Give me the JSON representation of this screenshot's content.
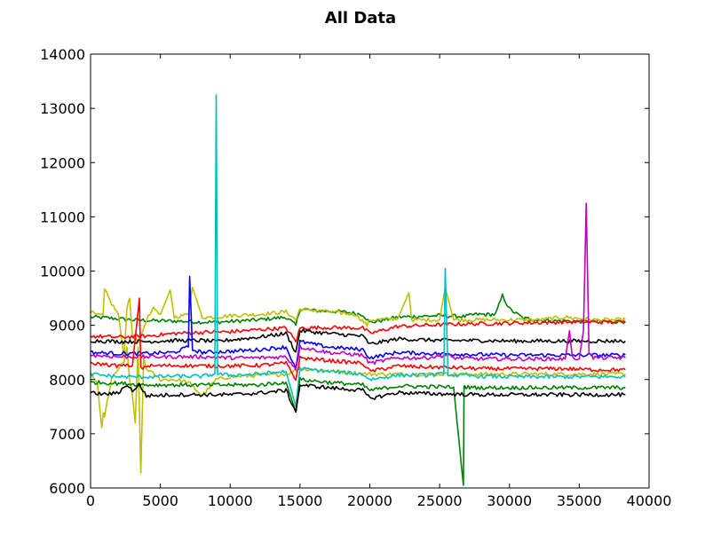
{
  "chart_data": {
    "type": "line",
    "title": "All Data",
    "xlabel": "",
    "ylabel": "",
    "xlim": [
      0,
      40000
    ],
    "ylim": [
      6000,
      14000
    ],
    "xticks": [
      0,
      5000,
      10000,
      15000,
      20000,
      25000,
      30000,
      35000,
      40000
    ],
    "yticks": [
      6000,
      7000,
      8000,
      9000,
      10000,
      11000,
      12000,
      13000,
      14000
    ],
    "xtick_labels": [
      "0",
      "5000",
      "10000",
      "15000",
      "20000",
      "25000",
      "30000",
      "35000",
      "40000"
    ],
    "ytick_labels": [
      "6000",
      "7000",
      "8000",
      "9000",
      "10000",
      "11000",
      "12000",
      "13000",
      "14000"
    ],
    "grid": false,
    "legend": "none",
    "series": [
      {
        "color": "#008000",
        "x": [
          0,
          1000,
          2000,
          3000,
          4000,
          5000,
          6000,
          7000,
          8000,
          9000,
          10000,
          12000,
          14000,
          14700,
          15000,
          16000,
          18000,
          19500,
          20000,
          22000,
          24000,
          25000,
          26000,
          26800,
          27500,
          29000,
          29500,
          30000,
          31000,
          32000,
          33000,
          34000,
          35000,
          36000,
          37000,
          38300
        ],
        "y": [
          9150,
          9140,
          9120,
          9100,
          9090,
          9080,
          9080,
          9070,
          9060,
          9060,
          9070,
          9100,
          9150,
          9000,
          9300,
          9270,
          9250,
          9200,
          9050,
          9150,
          9170,
          9180,
          9170,
          9160,
          9200,
          9200,
          9550,
          9300,
          9130,
          9100,
          9080,
          9080,
          9070,
          9070,
          9070,
          9070
        ]
      },
      {
        "color": "#bfbf00",
        "x": [
          0,
          500,
          900,
          1000,
          1500,
          2000,
          2400,
          2600,
          2800,
          3000,
          3500,
          4000,
          4500,
          5000,
          5700,
          6000,
          7000,
          7300,
          8000,
          9000,
          10000,
          12000,
          14000,
          14700,
          15000,
          17000,
          19000,
          19800,
          20000,
          22000,
          22800,
          23000,
          25000,
          25400,
          26000,
          28000,
          30000,
          32000,
          34000,
          36000,
          38300
        ],
        "y": [
          9250,
          9180,
          9200,
          9650,
          9400,
          9200,
          8400,
          9300,
          9500,
          8800,
          8700,
          9100,
          9300,
          9200,
          9650,
          9150,
          9200,
          9700,
          9150,
          9150,
          9180,
          9200,
          9250,
          9100,
          9300,
          9250,
          9200,
          9000,
          9100,
          9120,
          9600,
          9100,
          9100,
          9700,
          9100,
          9100,
          9100,
          9100,
          9150,
          9100,
          9100
        ]
      },
      {
        "color": "#bfbf00",
        "x": [
          0,
          500,
          800,
          900,
          1000,
          1200,
          1500,
          2000,
          2400,
          2600,
          2800,
          3000,
          3200,
          3400,
          3600,
          3800,
          4000,
          4500,
          5000,
          6000,
          7000,
          8000,
          9000,
          10000,
          14000,
          15000,
          20000,
          25000,
          30000,
          35000,
          38300
        ],
        "y": [
          8100,
          7900,
          7100,
          7400,
          7300,
          7600,
          8000,
          8200,
          8300,
          8600,
          8000,
          7700,
          7200,
          8600,
          6280,
          8400,
          8200,
          8100,
          8000,
          8000,
          7950,
          7700,
          8000,
          8050,
          8100,
          8200,
          8100,
          8100,
          8100,
          8100,
          8100
        ]
      },
      {
        "color": "#ff0000",
        "x": [
          0,
          2000,
          4000,
          6000,
          8000,
          10000,
          12000,
          14000,
          14700,
          15000,
          17000,
          19500,
          20000,
          22000,
          24000,
          26000,
          28000,
          30000,
          32000,
          34000,
          36000,
          38300
        ],
        "y": [
          8800,
          8780,
          8800,
          8850,
          8870,
          8880,
          8920,
          8950,
          8700,
          8950,
          8960,
          8950,
          8850,
          8980,
          9000,
          9020,
          9030,
          9040,
          9050,
          9060,
          9060,
          9060
        ]
      },
      {
        "color": "#000000",
        "x": [
          0,
          2000,
          4000,
          6000,
          8000,
          9000,
          10000,
          12000,
          14000,
          14700,
          15000,
          17000,
          19500,
          20000,
          22000,
          24000,
          26000,
          28000,
          30000,
          32000,
          34000,
          36000,
          38300
        ],
        "y": [
          8720,
          8700,
          8700,
          8720,
          8720,
          8700,
          8730,
          8780,
          8850,
          8500,
          8900,
          8850,
          8800,
          8650,
          8750,
          8730,
          8720,
          8720,
          8710,
          8710,
          8710,
          8710,
          8710
        ]
      },
      {
        "color": "#0000ff",
        "x": [
          0,
          2000,
          4000,
          6000,
          7000,
          7100,
          7300,
          8000,
          10000,
          12000,
          14000,
          14700,
          15000,
          17000,
          19500,
          20000,
          22000,
          24000,
          26000,
          28000,
          30000,
          32000,
          34000,
          36000,
          38300
        ],
        "y": [
          8500,
          8480,
          8480,
          8500,
          8600,
          9900,
          8550,
          8500,
          8520,
          8550,
          8600,
          8200,
          8700,
          8600,
          8550,
          8400,
          8500,
          8480,
          8470,
          8460,
          8450,
          8450,
          8450,
          8450,
          8450
        ]
      },
      {
        "color": "#bf00bf",
        "x": [
          0,
          2000,
          4000,
          6000,
          8000,
          10000,
          12000,
          14000,
          14700,
          15000,
          17000,
          19500,
          20000,
          22000,
          24000,
          25500,
          26000,
          28000,
          30000,
          32000,
          34000,
          34300,
          34500,
          35000,
          35300,
          35500,
          35700,
          36000,
          38300
        ],
        "y": [
          8450,
          8420,
          8420,
          8420,
          8420,
          8400,
          8400,
          8420,
          8200,
          8600,
          8500,
          8450,
          8300,
          8400,
          8400,
          8450,
          8400,
          8380,
          8380,
          8380,
          8380,
          8900,
          8400,
          8380,
          8900,
          11250,
          8500,
          8400,
          8400
        ]
      },
      {
        "color": "#ff0000",
        "x": [
          0,
          1000,
          2000,
          3000,
          3500,
          3600,
          4000,
          6000,
          8000,
          10000,
          12000,
          14000,
          14700,
          15000,
          17000,
          19500,
          20000,
          22000,
          24000,
          26000,
          28000,
          30000,
          32000,
          34000,
          36000,
          38300
        ],
        "y": [
          8300,
          8280,
          8250,
          8260,
          9500,
          8200,
          8250,
          8260,
          8250,
          8250,
          8260,
          8300,
          8000,
          8400,
          8350,
          8300,
          8150,
          8250,
          8230,
          8220,
          8200,
          8200,
          8200,
          8200,
          8180,
          8180
        ]
      },
      {
        "color": "#00bfbf",
        "x": [
          0,
          2000,
          4000,
          6000,
          8000,
          8900,
          9000,
          9100,
          10000,
          12000,
          14000,
          14700,
          15000,
          17000,
          19500,
          20000,
          22000,
          24000,
          25300,
          25400,
          25600,
          26000,
          28000,
          30000,
          32000,
          34000,
          36000,
          38300
        ],
        "y": [
          8100,
          8050,
          8050,
          8060,
          8060,
          8100,
          13250,
          8100,
          8080,
          8100,
          8150,
          7500,
          8200,
          8150,
          8100,
          8000,
          8080,
          8080,
          8100,
          10050,
          8100,
          8080,
          8060,
          8050,
          8050,
          8050,
          8050,
          8050
        ]
      },
      {
        "color": "#008000",
        "x": [
          0,
          2000,
          4000,
          6000,
          8000,
          10000,
          12000,
          14000,
          14700,
          15000,
          17000,
          19500,
          20000,
          22000,
          24000,
          26000,
          26700,
          26750,
          26800,
          28000,
          30000,
          32000,
          34000,
          36000,
          38300
        ],
        "y": [
          7950,
          7930,
          7900,
          7900,
          7900,
          7900,
          7900,
          7950,
          7400,
          8000,
          7950,
          7900,
          7800,
          7880,
          7870,
          7860,
          6050,
          7860,
          7860,
          7850,
          7850,
          7850,
          7850,
          7850,
          7850
        ]
      },
      {
        "color": "#000000",
        "x": [
          0,
          1000,
          2000,
          2500,
          3000,
          3500,
          4000,
          6000,
          8000,
          10000,
          12000,
          14000,
          14700,
          15000,
          17000,
          19500,
          20000,
          22000,
          24000,
          26000,
          28000,
          30000,
          32000,
          34000,
          36000,
          38300
        ],
        "y": [
          7750,
          7730,
          7750,
          7900,
          7800,
          7900,
          7700,
          7720,
          7720,
          7720,
          7750,
          7800,
          7400,
          7900,
          7850,
          7800,
          7650,
          7760,
          7740,
          7730,
          7720,
          7720,
          7720,
          7720,
          7720,
          7720
        ]
      }
    ]
  }
}
